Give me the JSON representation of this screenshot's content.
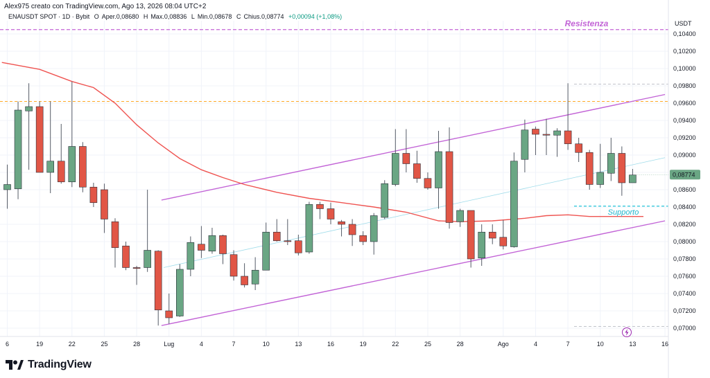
{
  "header": {
    "author_line": "Alex975 creato con TradingView.com, Ago 13, 2026 08:04 UTC+2",
    "symbol": "ENAUSDT SPOT · 1D · Bybit",
    "open_label": "O",
    "open_value": "Aper.0,08680",
    "high_label": "H",
    "high_value": "Max.0,08836",
    "low_label": "L",
    "low_value": "Min.0,08678",
    "close_label": "C",
    "close_value": "Chius.0,08774",
    "change": "+0,00094 (+1,08%)"
  },
  "brand": {
    "name": "TradingView"
  },
  "colors": {
    "up": "#6aa684",
    "down": "#e15646",
    "ma": "#ef5350",
    "channel": "#c263d6",
    "resistance": "#c263d6",
    "support": "#26c6da",
    "orange_line": "#ff9800",
    "last_price_bg": "#6aa684",
    "grid": "#f0f3fa"
  },
  "chart_data": {
    "type": "candlestick",
    "currency": "USDT",
    "ylim": [
      0.0685,
      0.1065
    ],
    "y_ticks": [
      "0,10400",
      "0,10200",
      "0,10000",
      "0,09800",
      "0,09600",
      "0,09400",
      "0,09200",
      "0,09000",
      "0,08800",
      "0,08600",
      "0,08400",
      "0,08200",
      "0,08000",
      "0,07800",
      "0,07600",
      "0,07400",
      "0,07200",
      "0,07000"
    ],
    "y_tick_values": [
      0.104,
      0.102,
      0.1,
      0.098,
      0.096,
      0.094,
      0.092,
      0.09,
      0.088,
      0.086,
      0.084,
      0.082,
      0.08,
      0.078,
      0.076,
      0.074,
      0.072,
      0.07
    ],
    "x_ticks": [
      {
        "label": "6",
        "index": 0
      },
      {
        "label": "19",
        "index": 3
      },
      {
        "label": "22",
        "index": 6
      },
      {
        "label": "25",
        "index": 9
      },
      {
        "label": "28",
        "index": 12
      },
      {
        "label": "Lug",
        "index": 15
      },
      {
        "label": "4",
        "index": 18
      },
      {
        "label": "7",
        "index": 21
      },
      {
        "label": "10",
        "index": 24
      },
      {
        "label": "13",
        "index": 27
      },
      {
        "label": "16",
        "index": 30
      },
      {
        "label": "19",
        "index": 33
      },
      {
        "label": "22",
        "index": 36
      },
      {
        "label": "25",
        "index": 39
      },
      {
        "label": "28",
        "index": 42
      },
      {
        "label": "Ago",
        "index": 46
      },
      {
        "label": "4",
        "index": 49
      },
      {
        "label": "7",
        "index": 52
      },
      {
        "label": "10",
        "index": 55
      },
      {
        "label": "13",
        "index": 58
      },
      {
        "label": "16",
        "index": 61
      }
    ],
    "candles": [
      {
        "o": 0.086,
        "h": 0.0889,
        "l": 0.0838,
        "c": 0.0866
      },
      {
        "o": 0.0861,
        "h": 0.0962,
        "l": 0.0849,
        "c": 0.0952
      },
      {
        "o": 0.0951,
        "h": 0.0983,
        "l": 0.0883,
        "c": 0.0956
      },
      {
        "o": 0.0956,
        "h": 0.0962,
        "l": 0.088,
        "c": 0.088
      },
      {
        "o": 0.088,
        "h": 0.0962,
        "l": 0.0856,
        "c": 0.0893
      },
      {
        "o": 0.0893,
        "h": 0.0936,
        "l": 0.0867,
        "c": 0.0869
      },
      {
        "o": 0.0869,
        "h": 0.0985,
        "l": 0.0863,
        "c": 0.091
      },
      {
        "o": 0.091,
        "h": 0.0915,
        "l": 0.0857,
        "c": 0.0863
      },
      {
        "o": 0.0863,
        "h": 0.0868,
        "l": 0.084,
        "c": 0.0845
      },
      {
        "o": 0.086,
        "h": 0.0867,
        "l": 0.081,
        "c": 0.0826
      },
      {
        "o": 0.0823,
        "h": 0.0827,
        "l": 0.077,
        "c": 0.0793
      },
      {
        "o": 0.0795,
        "h": 0.08,
        "l": 0.0767,
        "c": 0.077
      },
      {
        "o": 0.077,
        "h": 0.0772,
        "l": 0.075,
        "c": 0.0769
      },
      {
        "o": 0.077,
        "h": 0.086,
        "l": 0.0765,
        "c": 0.079
      },
      {
        "o": 0.0789,
        "h": 0.079,
        "l": 0.0703,
        "c": 0.0721
      },
      {
        "o": 0.072,
        "h": 0.074,
        "l": 0.0705,
        "c": 0.0712
      },
      {
        "o": 0.0714,
        "h": 0.0774,
        "l": 0.0713,
        "c": 0.0768
      },
      {
        "o": 0.0768,
        "h": 0.0806,
        "l": 0.076,
        "c": 0.0799
      },
      {
        "o": 0.0797,
        "h": 0.0818,
        "l": 0.0781,
        "c": 0.079
      },
      {
        "o": 0.0789,
        "h": 0.0816,
        "l": 0.0786,
        "c": 0.0807
      },
      {
        "o": 0.0807,
        "h": 0.0808,
        "l": 0.0774,
        "c": 0.0786
      },
      {
        "o": 0.0785,
        "h": 0.079,
        "l": 0.0755,
        "c": 0.076
      },
      {
        "o": 0.076,
        "h": 0.0775,
        "l": 0.0747,
        "c": 0.075
      },
      {
        "o": 0.0751,
        "h": 0.0782,
        "l": 0.0744,
        "c": 0.0767
      },
      {
        "o": 0.0767,
        "h": 0.0822,
        "l": 0.0767,
        "c": 0.0811
      },
      {
        "o": 0.0811,
        "h": 0.0826,
        "l": 0.08,
        "c": 0.0801
      },
      {
        "o": 0.0801,
        "h": 0.0826,
        "l": 0.0796,
        "c": 0.08
      },
      {
        "o": 0.0801,
        "h": 0.0808,
        "l": 0.0784,
        "c": 0.0787
      },
      {
        "o": 0.0788,
        "h": 0.0846,
        "l": 0.0786,
        "c": 0.0843
      },
      {
        "o": 0.0843,
        "h": 0.0846,
        "l": 0.0826,
        "c": 0.0838
      },
      {
        "o": 0.0838,
        "h": 0.0845,
        "l": 0.082,
        "c": 0.0826
      },
      {
        "o": 0.0823,
        "h": 0.0825,
        "l": 0.0806,
        "c": 0.082
      },
      {
        "o": 0.082,
        "h": 0.0826,
        "l": 0.0795,
        "c": 0.0808
      },
      {
        "o": 0.0807,
        "h": 0.0812,
        "l": 0.0796,
        "c": 0.08
      },
      {
        "o": 0.08,
        "h": 0.0833,
        "l": 0.0785,
        "c": 0.083
      },
      {
        "o": 0.0828,
        "h": 0.0871,
        "l": 0.0826,
        "c": 0.0867
      },
      {
        "o": 0.0866,
        "h": 0.093,
        "l": 0.0864,
        "c": 0.0902
      },
      {
        "o": 0.0902,
        "h": 0.093,
        "l": 0.088,
        "c": 0.089
      },
      {
        "o": 0.089,
        "h": 0.0905,
        "l": 0.0868,
        "c": 0.0873
      },
      {
        "o": 0.0873,
        "h": 0.088,
        "l": 0.086,
        "c": 0.0862
      },
      {
        "o": 0.0862,
        "h": 0.0928,
        "l": 0.0838,
        "c": 0.0904
      },
      {
        "o": 0.0904,
        "h": 0.0932,
        "l": 0.0815,
        "c": 0.0822
      },
      {
        "o": 0.0823,
        "h": 0.0838,
        "l": 0.0817,
        "c": 0.0836
      },
      {
        "o": 0.0836,
        "h": 0.0836,
        "l": 0.077,
        "c": 0.078
      },
      {
        "o": 0.0781,
        "h": 0.082,
        "l": 0.0772,
        "c": 0.0811
      },
      {
        "o": 0.0811,
        "h": 0.082,
        "l": 0.0797,
        "c": 0.0804
      },
      {
        "o": 0.0805,
        "h": 0.0825,
        "l": 0.0791,
        "c": 0.0795
      },
      {
        "o": 0.0794,
        "h": 0.0903,
        "l": 0.0793,
        "c": 0.0893
      },
      {
        "o": 0.0895,
        "h": 0.0941,
        "l": 0.088,
        "c": 0.0929
      },
      {
        "o": 0.093,
        "h": 0.0933,
        "l": 0.09,
        "c": 0.0924
      },
      {
        "o": 0.0924,
        "h": 0.0942,
        "l": 0.09,
        "c": 0.0923
      },
      {
        "o": 0.0923,
        "h": 0.0931,
        "l": 0.0898,
        "c": 0.0928
      },
      {
        "o": 0.0928,
        "h": 0.0983,
        "l": 0.0906,
        "c": 0.0913
      },
      {
        "o": 0.0913,
        "h": 0.092,
        "l": 0.0892,
        "c": 0.0903
      },
      {
        "o": 0.0903,
        "h": 0.0906,
        "l": 0.086,
        "c": 0.0866
      },
      {
        "o": 0.0866,
        "h": 0.0913,
        "l": 0.0862,
        "c": 0.088
      },
      {
        "o": 0.0879,
        "h": 0.092,
        "l": 0.087,
        "c": 0.0902
      },
      {
        "o": 0.0902,
        "h": 0.091,
        "l": 0.0853,
        "c": 0.0868
      },
      {
        "o": 0.0868,
        "h": 0.0884,
        "l": 0.0868,
        "c": 0.0877
      }
    ],
    "moving_average": [
      {
        "i": -0.5,
        "v": 0.1007
      },
      {
        "i": 3,
        "v": 0.0999
      },
      {
        "i": 6,
        "v": 0.0985
      },
      {
        "i": 8,
        "v": 0.0978
      },
      {
        "i": 10,
        "v": 0.096
      },
      {
        "i": 12,
        "v": 0.0935
      },
      {
        "i": 14,
        "v": 0.0914
      },
      {
        "i": 16,
        "v": 0.0896
      },
      {
        "i": 18,
        "v": 0.0883
      },
      {
        "i": 20,
        "v": 0.0874
      },
      {
        "i": 22,
        "v": 0.0866
      },
      {
        "i": 25,
        "v": 0.0857
      },
      {
        "i": 28,
        "v": 0.085
      },
      {
        "i": 31,
        "v": 0.0845
      },
      {
        "i": 34,
        "v": 0.084
      },
      {
        "i": 37,
        "v": 0.0834
      },
      {
        "i": 40,
        "v": 0.0824
      },
      {
        "i": 42,
        "v": 0.0823
      },
      {
        "i": 45,
        "v": 0.0824
      },
      {
        "i": 48,
        "v": 0.0827
      },
      {
        "i": 50,
        "v": 0.083
      },
      {
        "i": 52,
        "v": 0.0831
      },
      {
        "i": 54,
        "v": 0.0829
      },
      {
        "i": 56,
        "v": 0.0829
      },
      {
        "i": 58,
        "v": 0.0829
      },
      {
        "i": 59,
        "v": 0.0829
      }
    ],
    "channel_upper": {
      "i1": 14.3,
      "v1": 0.0848,
      "i2": 61,
      "v2": 0.097
    },
    "channel_lower": {
      "i1": 14.3,
      "v1": 0.0703,
      "i2": 61,
      "v2": 0.0824
    },
    "thin_trend": {
      "i1": 14.5,
      "v1": 0.077,
      "i2": 61,
      "v2": 0.0897
    },
    "resistance": {
      "value": 0.1045,
      "label": "Resistenza"
    },
    "support": {
      "value": 0.0841,
      "label": "Supporto"
    },
    "orange_level": 0.0962,
    "faint_levels": [
      0.0982,
      0.0702
    ],
    "last_price": {
      "value": 0.08774,
      "label": "0,08774"
    }
  }
}
